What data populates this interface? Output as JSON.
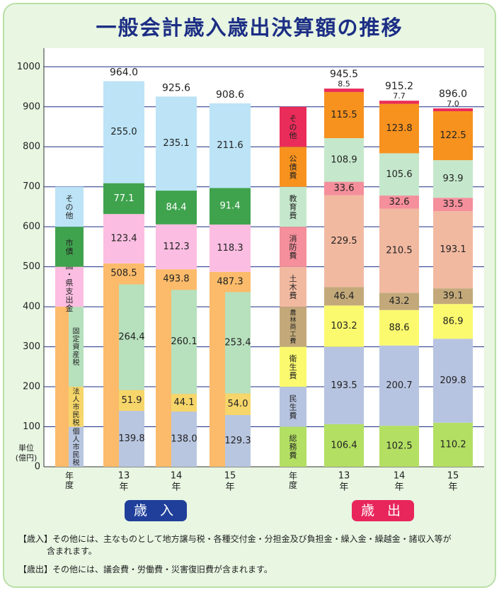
{
  "title": "一般会計歳入歳出決算額の推移",
  "unit_label": "単位\n(億円)",
  "badges": {
    "revenue": "歳 入",
    "expenditure": "歳 出"
  },
  "notes": {
    "revenue_label": "【歳入】",
    "revenue_text": "その他には、主なものとして地方譲与税・各種交付金・分担金及び負担金・繰入金・繰越金・諸収入等が",
    "revenue_text_cont": "含まれます。",
    "expenditure_label": "【歳出】",
    "expenditure_text": "その他には、議会費・労働費・災害復旧費が含まれます。"
  },
  "colors": {
    "light_blue": "#bce3f6",
    "green": "#3fa34d",
    "pink": "#fbbde1",
    "orange": "#fbbb6a",
    "mint": "#b7e0bd",
    "yellow_orange": "#f6d66a",
    "steel_blue": "#b8c6e0",
    "red": "#ea2c5a",
    "dark_orange": "#f7921e",
    "mint_green": "#c5e8cc",
    "rose": "#f48f9b",
    "salmon": "#f2b9a1",
    "tan": "#c3a97a",
    "light_yellow": "#fbfa6e",
    "lavender_blue": "#b7c4e1",
    "lime": "#b3df63",
    "grid": "#1c2e84"
  },
  "chart_data": {
    "type": "bar",
    "ylim": [
      0,
      1000
    ],
    "yticks": [
      0,
      100,
      200,
      300,
      400,
      500,
      600,
      700,
      800,
      900,
      1000
    ],
    "revenue": {
      "legend_year_label": "年\n度",
      "legend_segments": [
        {
          "name": "個人市民税",
          "color": "steel_blue",
          "value": 100
        },
        {
          "name": "法人市民税",
          "color": "yellow_orange",
          "value": 100
        },
        {
          "name": "固定資産税",
          "color": "mint",
          "value": 200
        },
        {
          "name": "国・県支出金",
          "color": "pink",
          "value": 100
        },
        {
          "name": "市債",
          "color": "green",
          "value": 100
        },
        {
          "name": "その他",
          "color": "light_blue",
          "value": 100
        }
      ],
      "legend_tax_label": "市\n税",
      "legend_tax_top": 500,
      "legend_tax_color": "orange",
      "years": [
        {
          "label": "13\n年",
          "total": "964.0",
          "city_tax": {
            "value": 508.5,
            "label": "508.5"
          },
          "tax_breakdown": [
            {
              "name": "個人市民税",
              "color": "steel_blue",
              "value": 139.8,
              "label": "139.8"
            },
            {
              "name": "法人市民税",
              "color": "yellow_orange",
              "value": 51.9,
              "label": "51.9"
            },
            {
              "name": "固定資産税",
              "color": "mint",
              "value": 264.4,
              "label": "264.4"
            }
          ],
          "segments": [
            {
              "name": "国・県支出金",
              "color": "pink",
              "value": 123.4,
              "label": "123.4"
            },
            {
              "name": "市債",
              "color": "green",
              "value": 77.1,
              "label": "77.1"
            },
            {
              "name": "その他",
              "color": "light_blue",
              "value": 255.0,
              "label": "255.0"
            }
          ]
        },
        {
          "label": "14\n年",
          "total": "925.6",
          "city_tax": {
            "value": 493.8,
            "label": "493.8"
          },
          "tax_breakdown": [
            {
              "name": "個人市民税",
              "color": "steel_blue",
              "value": 138.0,
              "label": "138.0"
            },
            {
              "name": "法人市民税",
              "color": "yellow_orange",
              "value": 44.1,
              "label": "44.1"
            },
            {
              "name": "固定資産税",
              "color": "mint",
              "value": 260.1,
              "label": "260.1"
            }
          ],
          "segments": [
            {
              "name": "国・県支出金",
              "color": "pink",
              "value": 112.3,
              "label": "112.3"
            },
            {
              "name": "市債",
              "color": "green",
              "value": 84.4,
              "label": "84.4"
            },
            {
              "name": "その他",
              "color": "light_blue",
              "value": 235.1,
              "label": "235.1"
            }
          ]
        },
        {
          "label": "15\n年",
          "total": "908.6",
          "city_tax": {
            "value": 487.3,
            "label": "487.3"
          },
          "tax_breakdown": [
            {
              "name": "個人市民税",
              "color": "steel_blue",
              "value": 129.3,
              "label": "129.3"
            },
            {
              "name": "法人市民税",
              "color": "yellow_orange",
              "value": 54.0,
              "label": "54.0"
            },
            {
              "name": "固定資産税",
              "color": "mint",
              "value": 253.4,
              "label": "253.4"
            }
          ],
          "segments": [
            {
              "name": "国・県支出金",
              "color": "pink",
              "value": 118.3,
              "label": "118.3"
            },
            {
              "name": "市債",
              "color": "green",
              "value": 91.4,
              "label": "91.4"
            },
            {
              "name": "その他",
              "color": "light_blue",
              "value": 211.6,
              "label": "211.6"
            }
          ]
        }
      ]
    },
    "expenditure": {
      "legend_year_label": "年\n度",
      "legend_segments": [
        {
          "name": "総務費",
          "color": "lime",
          "value": 100
        },
        {
          "name": "民生費",
          "color": "lavender_blue",
          "value": 100
        },
        {
          "name": "衛生費",
          "color": "light_yellow",
          "value": 100
        },
        {
          "name": "農林商工費",
          "color": "tan",
          "value": 100
        },
        {
          "name": "土木費",
          "color": "salmon",
          "value": 100
        },
        {
          "name": "消防費",
          "color": "rose",
          "value": 100
        },
        {
          "name": "教育費",
          "color": "mint_green",
          "value": 100
        },
        {
          "name": "公債費",
          "color": "dark_orange",
          "value": 100
        },
        {
          "name": "その他",
          "color": "red",
          "value": 100
        }
      ],
      "years": [
        {
          "label": "13\n年",
          "total": "945.5",
          "segments": [
            {
              "name": "総務費",
              "color": "lime",
              "value": 106.4,
              "label": "106.4"
            },
            {
              "name": "民生費",
              "color": "lavender_blue",
              "value": 193.5,
              "label": "193.5"
            },
            {
              "name": "衛生費",
              "color": "light_yellow",
              "value": 103.2,
              "label": "103.2"
            },
            {
              "name": "農林商工費",
              "color": "tan",
              "value": 46.4,
              "label": "46.4"
            },
            {
              "name": "土木費",
              "color": "salmon",
              "value": 229.5,
              "label": "229.5"
            },
            {
              "name": "消防費",
              "color": "rose",
              "value": 33.6,
              "label": "33.6"
            },
            {
              "name": "教育費",
              "color": "mint_green",
              "value": 108.9,
              "label": "108.9"
            },
            {
              "name": "公債費",
              "color": "dark_orange",
              "value": 115.5,
              "label": "115.5"
            },
            {
              "name": "その他",
              "color": "red",
              "value": 8.5,
              "label": "8.5"
            }
          ]
        },
        {
          "label": "14\n年",
          "total": "915.2",
          "segments": [
            {
              "name": "総務費",
              "color": "lime",
              "value": 102.5,
              "label": "102.5"
            },
            {
              "name": "民生費",
              "color": "lavender_blue",
              "value": 200.7,
              "label": "200.7"
            },
            {
              "name": "衛生費",
              "color": "light_yellow",
              "value": 88.6,
              "label": "88.6"
            },
            {
              "name": "農林商工費",
              "color": "tan",
              "value": 43.2,
              "label": "43.2"
            },
            {
              "name": "土木費",
              "color": "salmon",
              "value": 210.5,
              "label": "210.5"
            },
            {
              "name": "消防費",
              "color": "rose",
              "value": 32.6,
              "label": "32.6"
            },
            {
              "name": "教育費",
              "color": "mint_green",
              "value": 105.6,
              "label": "105.6"
            },
            {
              "name": "公債費",
              "color": "dark_orange",
              "value": 123.8,
              "label": "123.8"
            },
            {
              "name": "その他",
              "color": "red",
              "value": 7.7,
              "label": "7.7"
            }
          ]
        },
        {
          "label": "15\n年",
          "total": "896.0",
          "segments": [
            {
              "name": "総務費",
              "color": "lime",
              "value": 110.2,
              "label": "110.2"
            },
            {
              "name": "民生費",
              "color": "lavender_blue",
              "value": 209.8,
              "label": "209.8"
            },
            {
              "name": "衛生費",
              "color": "light_yellow",
              "value": 86.9,
              "label": "86.9"
            },
            {
              "name": "農林商工費",
              "color": "tan",
              "value": 39.1,
              "label": "39.1"
            },
            {
              "name": "土木費",
              "color": "salmon",
              "value": 193.1,
              "label": "193.1"
            },
            {
              "name": "消防費",
              "color": "rose",
              "value": 33.5,
              "label": "33.5"
            },
            {
              "name": "教育費",
              "color": "mint_green",
              "value": 93.9,
              "label": "93.9"
            },
            {
              "name": "公債費",
              "color": "dark_orange",
              "value": 122.5,
              "label": "122.5"
            },
            {
              "name": "その他",
              "color": "red",
              "value": 7.0,
              "label": "7.0"
            }
          ]
        }
      ]
    }
  }
}
